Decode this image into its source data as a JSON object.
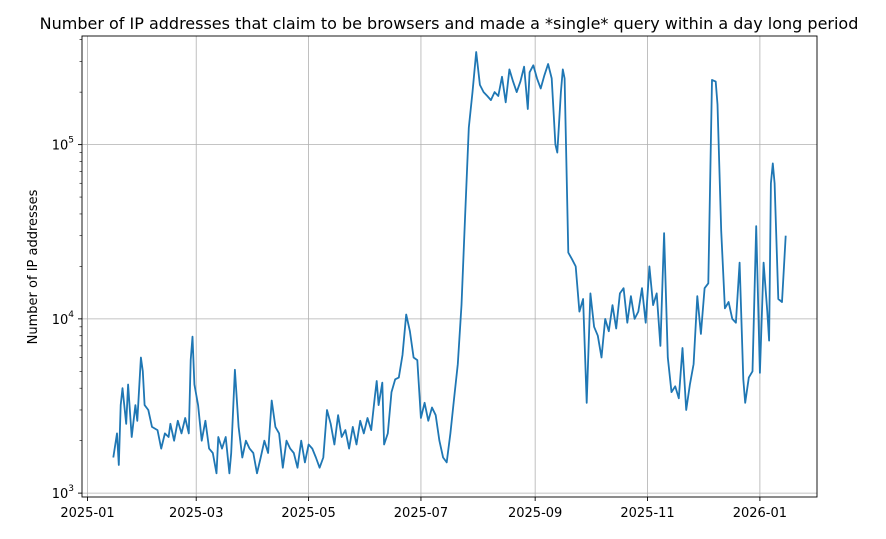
{
  "chart_data": {
    "type": "line",
    "title": "Number of IP addresses that claim to be browsers and made a *single* query within a day long period",
    "xlabel": "",
    "ylabel": "Number of IP addresses",
    "yscale": "log",
    "grid": true,
    "ylim": [
      950,
      420000
    ],
    "xlim": [
      "2024-12-29",
      "2026-02-01"
    ],
    "x_ticks": [
      "2025-01",
      "2025-03",
      "2025-05",
      "2025-07",
      "2025-09",
      "2025-11",
      "2026-01"
    ],
    "y_ticks": [
      {
        "value": 1000,
        "base": "10",
        "exp": "3"
      },
      {
        "value": 10000,
        "base": "10",
        "exp": "4"
      },
      {
        "value": 100000,
        "base": "10",
        "exp": "5"
      }
    ],
    "line_color": "#1f77b4",
    "series": [
      {
        "values": [
          [
            "2025-01-15",
            1600
          ],
          [
            "2025-01-17",
            2200
          ],
          [
            "2025-01-18",
            1450
          ],
          [
            "2025-01-19",
            3200
          ],
          [
            "2025-01-20",
            4000
          ],
          [
            "2025-01-22",
            2500
          ],
          [
            "2025-01-23",
            4200
          ],
          [
            "2025-01-25",
            2100
          ],
          [
            "2025-01-27",
            3200
          ],
          [
            "2025-01-28",
            2600
          ],
          [
            "2025-01-30",
            6000
          ],
          [
            "2025-01-31",
            5000
          ],
          [
            "2025-02-01",
            3200
          ],
          [
            "2025-02-03",
            3000
          ],
          [
            "2025-02-05",
            2400
          ],
          [
            "2025-02-08",
            2300
          ],
          [
            "2025-02-10",
            1800
          ],
          [
            "2025-02-12",
            2200
          ],
          [
            "2025-02-14",
            2100
          ],
          [
            "2025-02-15",
            2500
          ],
          [
            "2025-02-17",
            2000
          ],
          [
            "2025-02-19",
            2600
          ],
          [
            "2025-02-21",
            2200
          ],
          [
            "2025-02-23",
            2700
          ],
          [
            "2025-02-25",
            2200
          ],
          [
            "2025-02-26",
            5800
          ],
          [
            "2025-02-27",
            7900
          ],
          [
            "2025-02-28",
            4200
          ],
          [
            "2025-03-02",
            3200
          ],
          [
            "2025-03-04",
            2000
          ],
          [
            "2025-03-06",
            2600
          ],
          [
            "2025-03-08",
            1800
          ],
          [
            "2025-03-10",
            1700
          ],
          [
            "2025-03-12",
            1300
          ],
          [
            "2025-03-13",
            2100
          ],
          [
            "2025-03-15",
            1800
          ],
          [
            "2025-03-17",
            2100
          ],
          [
            "2025-03-19",
            1300
          ],
          [
            "2025-03-20",
            1700
          ],
          [
            "2025-03-22",
            5100
          ],
          [
            "2025-03-24",
            2400
          ],
          [
            "2025-03-26",
            1600
          ],
          [
            "2025-03-28",
            2000
          ],
          [
            "2025-03-30",
            1800
          ],
          [
            "2025-04-01",
            1700
          ],
          [
            "2025-04-03",
            1300
          ],
          [
            "2025-04-05",
            1600
          ],
          [
            "2025-04-07",
            2000
          ],
          [
            "2025-04-09",
            1700
          ],
          [
            "2025-04-11",
            3400
          ],
          [
            "2025-04-13",
            2400
          ],
          [
            "2025-04-15",
            2200
          ],
          [
            "2025-04-17",
            1400
          ],
          [
            "2025-04-19",
            2000
          ],
          [
            "2025-04-21",
            1800
          ],
          [
            "2025-04-23",
            1700
          ],
          [
            "2025-04-25",
            1400
          ],
          [
            "2025-04-27",
            2000
          ],
          [
            "2025-04-29",
            1500
          ],
          [
            "2025-05-01",
            1900
          ],
          [
            "2025-05-03",
            1800
          ],
          [
            "2025-05-05",
            1600
          ],
          [
            "2025-05-07",
            1400
          ],
          [
            "2025-05-09",
            1600
          ],
          [
            "2025-05-11",
            3000
          ],
          [
            "2025-05-13",
            2500
          ],
          [
            "2025-05-15",
            1900
          ],
          [
            "2025-05-17",
            2800
          ],
          [
            "2025-05-19",
            2100
          ],
          [
            "2025-05-21",
            2300
          ],
          [
            "2025-05-23",
            1800
          ],
          [
            "2025-05-25",
            2400
          ],
          [
            "2025-05-27",
            1900
          ],
          [
            "2025-05-29",
            2600
          ],
          [
            "2025-05-31",
            2200
          ],
          [
            "2025-06-02",
            2700
          ],
          [
            "2025-06-04",
            2300
          ],
          [
            "2025-06-06",
            3600
          ],
          [
            "2025-06-07",
            4400
          ],
          [
            "2025-06-08",
            3200
          ],
          [
            "2025-06-10",
            4300
          ],
          [
            "2025-06-11",
            1900
          ],
          [
            "2025-06-13",
            2200
          ],
          [
            "2025-06-15",
            3800
          ],
          [
            "2025-06-17",
            4500
          ],
          [
            "2025-06-19",
            4600
          ],
          [
            "2025-06-21",
            6200
          ],
          [
            "2025-06-23",
            10600
          ],
          [
            "2025-06-25",
            8500
          ],
          [
            "2025-06-27",
            6000
          ],
          [
            "2025-06-29",
            5800
          ],
          [
            "2025-07-01",
            2700
          ],
          [
            "2025-07-03",
            3300
          ],
          [
            "2025-07-05",
            2600
          ],
          [
            "2025-07-07",
            3100
          ],
          [
            "2025-07-09",
            2800
          ],
          [
            "2025-07-11",
            2000
          ],
          [
            "2025-07-13",
            1600
          ],
          [
            "2025-07-15",
            1500
          ],
          [
            "2025-07-17",
            2200
          ],
          [
            "2025-07-19",
            3500
          ],
          [
            "2025-07-21",
            5500
          ],
          [
            "2025-07-23",
            12000
          ],
          [
            "2025-07-25",
            40000
          ],
          [
            "2025-07-27",
            125000
          ],
          [
            "2025-07-29",
            200000
          ],
          [
            "2025-07-31",
            340000
          ],
          [
            "2025-08-02",
            220000
          ],
          [
            "2025-08-04",
            200000
          ],
          [
            "2025-08-06",
            190000
          ],
          [
            "2025-08-08",
            180000
          ],
          [
            "2025-08-10",
            200000
          ],
          [
            "2025-08-12",
            190000
          ],
          [
            "2025-08-14",
            245000
          ],
          [
            "2025-08-16",
            175000
          ],
          [
            "2025-08-18",
            270000
          ],
          [
            "2025-08-20",
            230000
          ],
          [
            "2025-08-22",
            200000
          ],
          [
            "2025-08-24",
            230000
          ],
          [
            "2025-08-26",
            280000
          ],
          [
            "2025-08-28",
            160000
          ],
          [
            "2025-08-29",
            260000
          ],
          [
            "2025-08-31",
            285000
          ],
          [
            "2025-09-02",
            240000
          ],
          [
            "2025-09-04",
            210000
          ],
          [
            "2025-09-06",
            250000
          ],
          [
            "2025-09-08",
            290000
          ],
          [
            "2025-09-10",
            240000
          ],
          [
            "2025-09-12",
            100000
          ],
          [
            "2025-09-13",
            90000
          ],
          [
            "2025-09-15",
            200000
          ],
          [
            "2025-09-16",
            270000
          ],
          [
            "2025-09-17",
            240000
          ],
          [
            "2025-09-19",
            24000
          ],
          [
            "2025-09-21",
            22000
          ],
          [
            "2025-09-23",
            20000
          ],
          [
            "2025-09-25",
            11000
          ],
          [
            "2025-09-27",
            13000
          ],
          [
            "2025-09-29",
            3300
          ],
          [
            "2025-10-01",
            14000
          ],
          [
            "2025-10-03",
            9000
          ],
          [
            "2025-10-05",
            8000
          ],
          [
            "2025-10-07",
            6000
          ],
          [
            "2025-10-09",
            10000
          ],
          [
            "2025-10-11",
            8500
          ],
          [
            "2025-10-13",
            12000
          ],
          [
            "2025-10-15",
            8800
          ],
          [
            "2025-10-17",
            14000
          ],
          [
            "2025-10-19",
            15000
          ],
          [
            "2025-10-21",
            9500
          ],
          [
            "2025-10-23",
            13500
          ],
          [
            "2025-10-25",
            10000
          ],
          [
            "2025-10-27",
            11000
          ],
          [
            "2025-10-29",
            15000
          ],
          [
            "2025-10-31",
            9500
          ],
          [
            "2025-11-02",
            20000
          ],
          [
            "2025-11-04",
            12000
          ],
          [
            "2025-11-06",
            14000
          ],
          [
            "2025-11-08",
            7000
          ],
          [
            "2025-11-10",
            31000
          ],
          [
            "2025-11-12",
            6000
          ],
          [
            "2025-11-14",
            3800
          ],
          [
            "2025-11-16",
            4100
          ],
          [
            "2025-11-18",
            3500
          ],
          [
            "2025-11-20",
            6800
          ],
          [
            "2025-11-22",
            3000
          ],
          [
            "2025-11-24",
            4200
          ],
          [
            "2025-11-26",
            5500
          ],
          [
            "2025-11-28",
            13500
          ],
          [
            "2025-11-30",
            8200
          ],
          [
            "2025-12-02",
            15000
          ],
          [
            "2025-12-04",
            16000
          ],
          [
            "2025-12-06",
            235000
          ],
          [
            "2025-12-08",
            230000
          ],
          [
            "2025-12-09",
            170000
          ],
          [
            "2025-12-11",
            32000
          ],
          [
            "2025-12-13",
            11500
          ],
          [
            "2025-12-15",
            12500
          ],
          [
            "2025-12-17",
            10000
          ],
          [
            "2025-12-19",
            9500
          ],
          [
            "2025-12-21",
            21000
          ],
          [
            "2025-12-23",
            4500
          ],
          [
            "2025-12-24",
            3300
          ],
          [
            "2025-12-26",
            4600
          ],
          [
            "2025-12-28",
            5000
          ],
          [
            "2025-12-30",
            34000
          ],
          [
            "2026-01-01",
            4900
          ],
          [
            "2026-01-03",
            21000
          ],
          [
            "2026-01-05",
            11000
          ],
          [
            "2026-01-06",
            7500
          ],
          [
            "2026-01-07",
            60000
          ],
          [
            "2026-01-08",
            78000
          ],
          [
            "2026-01-09",
            60000
          ],
          [
            "2026-01-11",
            13000
          ],
          [
            "2026-01-13",
            12500
          ],
          [
            "2026-01-15",
            30000
          ]
        ]
      }
    ]
  }
}
